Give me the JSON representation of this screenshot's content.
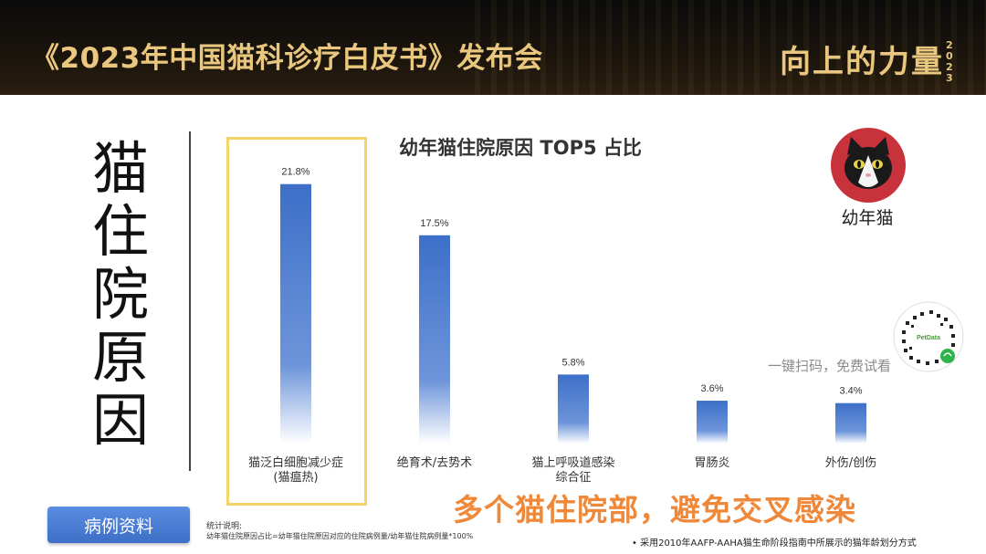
{
  "header": {
    "title": "《2023年中国猫科诊疗白皮书》发布会",
    "logo_text": "向上的力量",
    "logo_year": "2023"
  },
  "side_title": "猫住院原因",
  "cat_badge": {
    "icon": "cat-face-icon",
    "label": "幼年猫",
    "color": "#c8323b"
  },
  "qr": {
    "icon": "qr-code-icon",
    "brand_text": "PetData",
    "scan_text": "一键扫码，免费试看"
  },
  "case_button_label": "病例资料",
  "note": {
    "title": "统计说明:",
    "text": "幼年猫住院原因占比=幼年猫住院原因对应的住院病例量/幼年猫住院病例量*100%"
  },
  "slogan": "多个猫住院部，避免交叉感染",
  "footnote": "•  采用2010年AAFP-AAHA猫生命阶段指南中所展示的猫年龄划分方式",
  "colors": {
    "header_gold": "#e9c77e",
    "bar_blue": "#3d6fc8",
    "highlight": "#f2d46a",
    "slogan_orange": "#f0883a"
  },
  "chart_data": {
    "type": "bar",
    "title": "幼年猫住院原因 TOP5 占比",
    "categories": [
      [
        "猫泛白细胞减少症",
        "(猫瘟热)"
      ],
      [
        "绝育术/去势术"
      ],
      [
        "猫上呼吸道感染",
        "综合征"
      ],
      [
        "胃肠炎"
      ],
      [
        "外伤/创伤"
      ]
    ],
    "values": [
      21.8,
      17.5,
      5.8,
      3.6,
      3.4
    ],
    "value_labels": [
      "21.8%",
      "17.5%",
      "5.8%",
      "3.6%",
      "3.4%"
    ],
    "unit": "%",
    "ylim": [
      0,
      25
    ],
    "grid": false,
    "legend": "none",
    "highlighted_category_index": 0
  }
}
